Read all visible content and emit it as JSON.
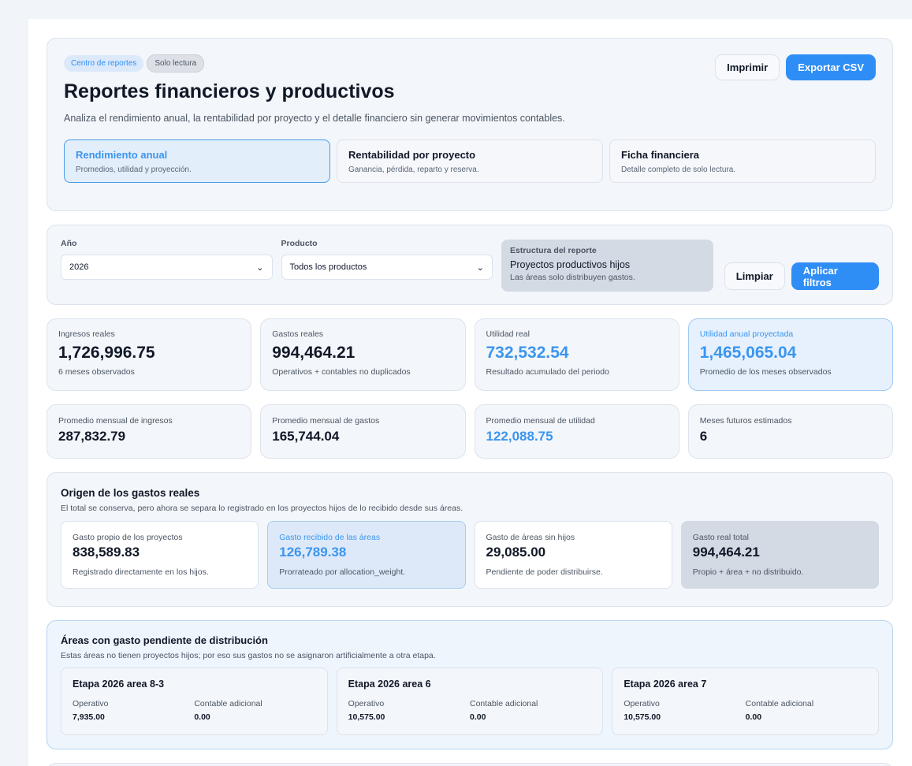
{
  "header": {
    "badges": [
      "Centro de reportes",
      "Solo lectura"
    ],
    "title": "Reportes financieros y productivos",
    "description": "Analiza el rendimiento anual, la rentabilidad por proyecto y el detalle financiero sin generar movimientos contables.",
    "actions": [
      "Imprimir",
      "Exportar CSV"
    ]
  },
  "tabs": [
    {
      "title": "Rendimiento anual",
      "subtitle": "Promedios, utilidad y proyección."
    },
    {
      "title": "Rentabilidad por proyecto",
      "subtitle": "Ganancia, pérdida, reparto y reserva."
    },
    {
      "title": "Ficha financiera",
      "subtitle": "Detalle completo de solo lectura."
    }
  ],
  "filters": {
    "year": {
      "label": "Año",
      "value": "2026"
    },
    "product": {
      "label": "Producto",
      "value": "Todos los productos"
    },
    "structure": {
      "label": "Estructura del reporte",
      "title": "Proyectos productivos hijos",
      "note": "Las áreas solo distribuyen gastos."
    },
    "actions": [
      "Limpiar",
      "Aplicar filtros"
    ]
  },
  "kpis": [
    {
      "label": "Ingresos reales",
      "value": "1,726,996.75",
      "note": "6 meses observados"
    },
    {
      "label": "Gastos reales",
      "value": "994,464.21",
      "note": "Operativos + contables no duplicados"
    },
    {
      "label": "Utilidad real",
      "value": "732,532.54",
      "note": "Resultado acumulado del periodo"
    },
    {
      "label": "Utilidad anual proyectada",
      "value": "1,465,065.04",
      "note": "Promedio de los meses observados"
    }
  ],
  "averages": [
    {
      "label": "Promedio mensual de ingresos",
      "value": "287,832.79"
    },
    {
      "label": "Promedio mensual de gastos",
      "value": "165,744.04"
    },
    {
      "label": "Promedio mensual de utilidad",
      "value": "122,088.75"
    },
    {
      "label": "Meses futuros estimados",
      "value": "6"
    }
  ],
  "expense_origin": {
    "title": "Origen de los gastos reales",
    "subtitle": "El total se conserva, pero ahora se separa lo registrado en los proyectos hijos de lo recibido desde sus áreas.",
    "cards": [
      {
        "label": "Gasto propio de los proyectos",
        "value": "838,589.83",
        "note": "Registrado directamente en los hijos."
      },
      {
        "label": "Gasto recibido de las áreas",
        "value": "126,789.38",
        "note": "Prorrateado por allocation_weight."
      },
      {
        "label": "Gasto de áreas sin hijos",
        "value": "29,085.00",
        "note": "Pendiente de poder distribuirse."
      },
      {
        "label": "Gasto real total",
        "value": "994,464.21",
        "note": "Propio + área + no distribuido."
      }
    ]
  },
  "pending_areas": {
    "title": "Áreas con gasto pendiente de distribución",
    "subtitle": "Estas áreas no tienen proyectos hijos; por eso sus gastos no se asignaron artificialmente a otra etapa.",
    "areas": [
      {
        "name": "Etapa 2026 area 8-3",
        "operative_label": "Operativo",
        "operative": "7,935.00",
        "accounting_label": "Contable adicional",
        "accounting": "0.00"
      },
      {
        "name": "Etapa 2026 area 6",
        "operative_label": "Operativo",
        "operative": "10,575.00",
        "accounting_label": "Contable adicional",
        "accounting": "0.00"
      },
      {
        "name": "Etapa 2026 area 7",
        "operative_label": "Operativo",
        "operative": "10,575.00",
        "accounting_label": "Contable adicional",
        "accounting": "0.00"
      }
    ]
  }
}
